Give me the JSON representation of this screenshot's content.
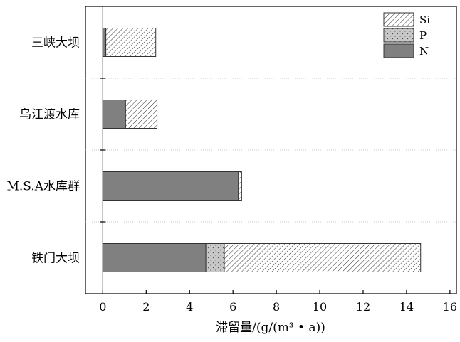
{
  "chart_data": {
    "type": "bar",
    "orientation": "horizontal",
    "stacked": true,
    "categories": [
      "三峡大坝",
      "乌江渡水库",
      "M.S.A水库群",
      "铁门大坝"
    ],
    "series": [
      {
        "name": "N",
        "values": [
          0.12,
          1.05,
          6.25,
          4.75
        ],
        "color": "#808080",
        "pattern": "solid"
      },
      {
        "name": "P",
        "values": [
          0.02,
          0.0,
          0.0,
          0.85
        ],
        "color": "#c8c8c8",
        "pattern": "dots"
      },
      {
        "name": "Si",
        "values": [
          2.3,
          1.45,
          0.15,
          9.05
        ],
        "color": "#ffffff",
        "pattern": "hatch"
      }
    ],
    "xlabel": "滞留量/(g/(m³ • a))",
    "ylabel": "",
    "xlim": [
      -0.8,
      16.3
    ],
    "xticks": [
      0,
      2,
      4,
      6,
      8,
      10,
      12,
      14,
      16
    ],
    "grid": "horizontal dotted separators between categories",
    "legend_position": "top-right",
    "legend_order": [
      "Si",
      "P",
      "N"
    ]
  }
}
